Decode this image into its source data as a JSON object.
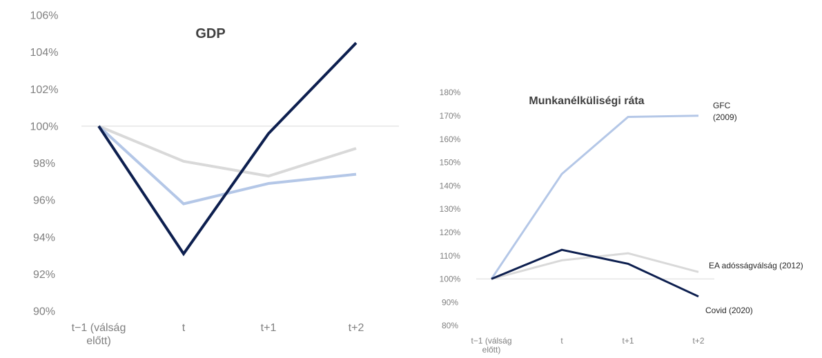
{
  "chart_data": [
    {
      "type": "line",
      "title": "GDP",
      "categories": [
        "t−1 (válság előtt)",
        "t",
        "t+1",
        "t+2"
      ],
      "category_lines": [
        [
          "t−1 (válság",
          "előtt)"
        ],
        [
          "t"
        ],
        [
          "t+1"
        ],
        [
          "t+2"
        ]
      ],
      "ylim": [
        0.9,
        1.06
      ],
      "yticks": [
        0.9,
        0.92,
        0.94,
        0.96,
        0.98,
        1.0,
        1.02,
        1.04,
        1.06
      ],
      "ytick_labels": [
        "90%",
        "92%",
        "94%",
        "96%",
        "98%",
        "100%",
        "102%",
        "104%",
        "106%"
      ],
      "reference_line": 1.0,
      "series": [
        {
          "values": [
            1.0,
            0.981,
            0.973,
            0.988
          ],
          "color": "#d9d9d9"
        },
        {
          "values": [
            1.0,
            0.958,
            0.969,
            0.974
          ],
          "color": "#b4c7e7"
        },
        {
          "values": [
            1.0,
            0.931,
            0.996,
            1.045
          ],
          "color": "#0d1f4f"
        }
      ]
    },
    {
      "type": "line",
      "title": "Munkanélküliségi ráta",
      "categories": [
        "t−1 (válság előtt)",
        "t",
        "t+1",
        "t+2"
      ],
      "category_lines": [
        [
          "t−1 (válság",
          "előtt)"
        ],
        [
          "t"
        ],
        [
          "t+1"
        ],
        [
          "t+2"
        ]
      ],
      "ylim": [
        0.8,
        1.8
      ],
      "yticks": [
        0.8,
        0.9,
        1.0,
        1.1,
        1.2,
        1.3,
        1.4,
        1.5,
        1.6,
        1.7,
        1.8
      ],
      "ytick_labels": [
        "80%",
        "90%",
        "100%",
        "110%",
        "120%",
        "130%",
        "140%",
        "150%",
        "160%",
        "170%",
        "180%"
      ],
      "reference_line": 1.0,
      "series": [
        {
          "name": "GFC (2009)",
          "name_lines": [
            "GFC",
            "(2009)"
          ],
          "values": [
            1.0,
            1.45,
            1.695,
            1.7
          ],
          "color": "#b4c7e7"
        },
        {
          "name": "EA adósságválság (2012)",
          "name_lines": [
            "EA adósságválság (2012)"
          ],
          "values": [
            1.0,
            1.08,
            1.11,
            1.03
          ],
          "color": "#d9d9d9"
        },
        {
          "name": "Covid (2020)",
          "name_lines": [
            "Covid (2020)"
          ],
          "values": [
            1.0,
            1.125,
            1.065,
            0.925
          ],
          "color": "#0d1f4f"
        }
      ]
    }
  ]
}
